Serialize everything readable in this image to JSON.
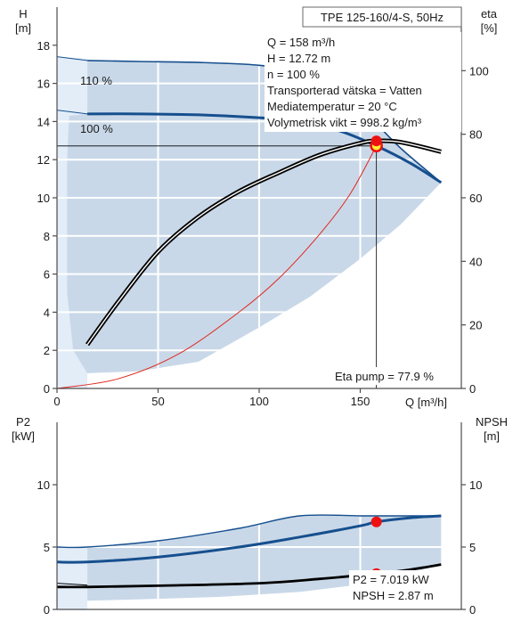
{
  "colors": {
    "region": "#c9d8e8",
    "region_light": "#e2edf8",
    "curve_blue": "#164f8e",
    "curve_black": "#000000",
    "system_curve": "#e0281e",
    "point_red": "#ee1111",
    "point_yellow": "#ffee33",
    "grid": "#ffffff",
    "tick_line": "#4d4d4d"
  },
  "chart_data": [
    {
      "id": "head_efficiency",
      "type": "line",
      "title": "TPE 125-160/4-S, 50Hz",
      "xlabel": "Q [m³/h]",
      "ylabel_left": [
        "H",
        "[m]"
      ],
      "ylabel_right": [
        "eta",
        "[%]"
      ],
      "xlim": [
        0,
        200
      ],
      "ylim": [
        0,
        20
      ],
      "y2lim": [
        0,
        120
      ],
      "xticks": [
        0,
        50,
        100,
        150
      ],
      "yticks": [
        0,
        2,
        4,
        6,
        8,
        10,
        12,
        14,
        16,
        18
      ],
      "y2ticks": [
        0,
        20,
        40,
        60,
        80,
        100
      ],
      "grid": true,
      "info": [
        "Q = 158 m³/h",
        "H = 12.72 m",
        "n = 100 %",
        "Transporterad vätska = Vatten",
        "Mediatemperatur = 20 °C",
        "Volymetrisk vikt = 998.2 kg/m³"
      ],
      "series": [
        {
          "name": "110 %",
          "axis": "left",
          "x": [
            15,
            40,
            70,
            100,
            120,
            140,
            155,
            170,
            190
          ],
          "y": [
            17.2,
            17.15,
            17.1,
            16.95,
            16.6,
            15.6,
            14.2,
            12.6,
            10.8
          ]
        },
        {
          "name": "100 %",
          "axis": "left",
          "x": [
            15,
            40,
            70,
            100,
            120,
            140,
            158,
            175,
            190
          ],
          "y": [
            14.4,
            14.4,
            14.35,
            14.2,
            14.0,
            13.5,
            12.72,
            11.8,
            10.8
          ]
        },
        {
          "axis": "right",
          "x": [
            15,
            30,
            50,
            70,
            90,
            110,
            130,
            150,
            158,
            170,
            190
          ],
          "y": [
            13.8,
            27,
            43,
            54,
            62,
            68,
            73.5,
            77.2,
            77.9,
            77.5,
            74.5
          ]
        },
        {
          "axis": "left",
          "x": [
            0,
            30,
            60,
            90,
            110,
            130,
            145,
            158
          ],
          "y": [
            0,
            0.5,
            1.8,
            4.0,
            5.8,
            8.1,
            10.2,
            12.72
          ]
        }
      ],
      "points": [
        {
          "x": 158,
          "y": 12.72,
          "axis": "left"
        },
        {
          "x": 158,
          "y": 77.9,
          "axis": "right"
        }
      ],
      "annotation": "Eta pump = 77.9 %"
    },
    {
      "id": "power_npsh",
      "type": "line",
      "xlim": [
        0,
        200
      ],
      "ylim": [
        0,
        15
      ],
      "ylabel_left": [
        "P2",
        "[kW]"
      ],
      "ylabel_right": [
        "NPSH",
        "[m]"
      ],
      "yticks": [
        0,
        5,
        10
      ],
      "y2ticks": [
        0,
        5,
        10
      ],
      "grid": true,
      "series": [
        {
          "axis": "left",
          "x": [
            0,
            15,
            50,
            90,
            120,
            150,
            158,
            175,
            190
          ],
          "y": [
            5.0,
            5.0,
            5.5,
            6.5,
            7.5,
            7.5,
            7.5,
            7.5,
            7.5
          ]
        },
        {
          "axis": "left",
          "x": [
            0,
            15,
            50,
            90,
            120,
            150,
            158,
            175,
            190
          ],
          "y": [
            3.8,
            3.8,
            4.2,
            5.0,
            5.8,
            6.7,
            7.019,
            7.35,
            7.5
          ]
        },
        {
          "axis": "right",
          "x": [
            0,
            15,
            50,
            100,
            130,
            158,
            175,
            190
          ],
          "y": [
            1.8,
            1.8,
            1.9,
            2.1,
            2.45,
            2.87,
            3.2,
            3.6
          ]
        }
      ],
      "points": [
        {
          "x": 158,
          "y": 7.019,
          "axis": "left"
        },
        {
          "x": 158,
          "y": 2.87,
          "axis": "right"
        }
      ],
      "annotations": [
        "P2 = 7.019 kW",
        "NPSH = 2.87 m"
      ]
    }
  ]
}
